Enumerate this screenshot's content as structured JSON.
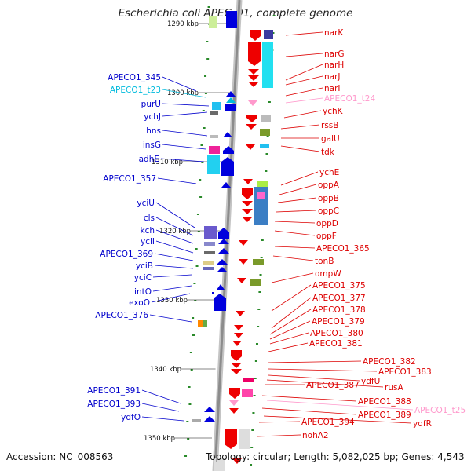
{
  "title": "Escherichia coli APEC O1, complete genome",
  "accession": "Accession: NC_008563",
  "summary": "Topology: circular; Length: 5,082,025 bp; Genes: 4,543",
  "scale_labels": [
    "1290 kbp",
    "1300 kbp",
    "1310 kbp",
    "1320 kbp",
    "1330 kbp",
    "1340 kbp",
    "1350 kbp"
  ],
  "colors": {
    "left_gene": "#0000cc",
    "right_gene": "#dd0000",
    "trna_left": "#00bbdd",
    "trna_right": "#ff99cc",
    "axis": "#999999"
  },
  "left_genes": [
    "APECO1_345",
    "APECO1_t23",
    "purU",
    "ychJ",
    "hns",
    "insG",
    "adhE",
    "APECO1_357",
    "yciU",
    "cls",
    "kch",
    "yciI",
    "APECO1_369",
    "yciB",
    "yciC",
    "intO",
    "exoO",
    "APECO1_376",
    "APECO1_391",
    "APECO1_393",
    "ydfO"
  ],
  "right_genes": [
    "narK",
    "narG",
    "narH",
    "narJ",
    "narI",
    "APECO1_t24",
    "ychK",
    "rssB",
    "galU",
    "tdk",
    "ychE",
    "oppA",
    "oppB",
    "oppC",
    "oppD",
    "oppF",
    "APECO1_365",
    "tonB",
    "ompW",
    "APECO1_375",
    "APECO1_377",
    "APECO1_378",
    "APECO1_379",
    "APECO1_380",
    "APECO1_381",
    "APECO1_382",
    "APECO1_383",
    "ydfU",
    "rusA",
    "APECO1_387",
    "APECO1_388",
    "APECO1_t25",
    "APECO1_389",
    "ydfR",
    "APECO1_394",
    "nohA2"
  ]
}
